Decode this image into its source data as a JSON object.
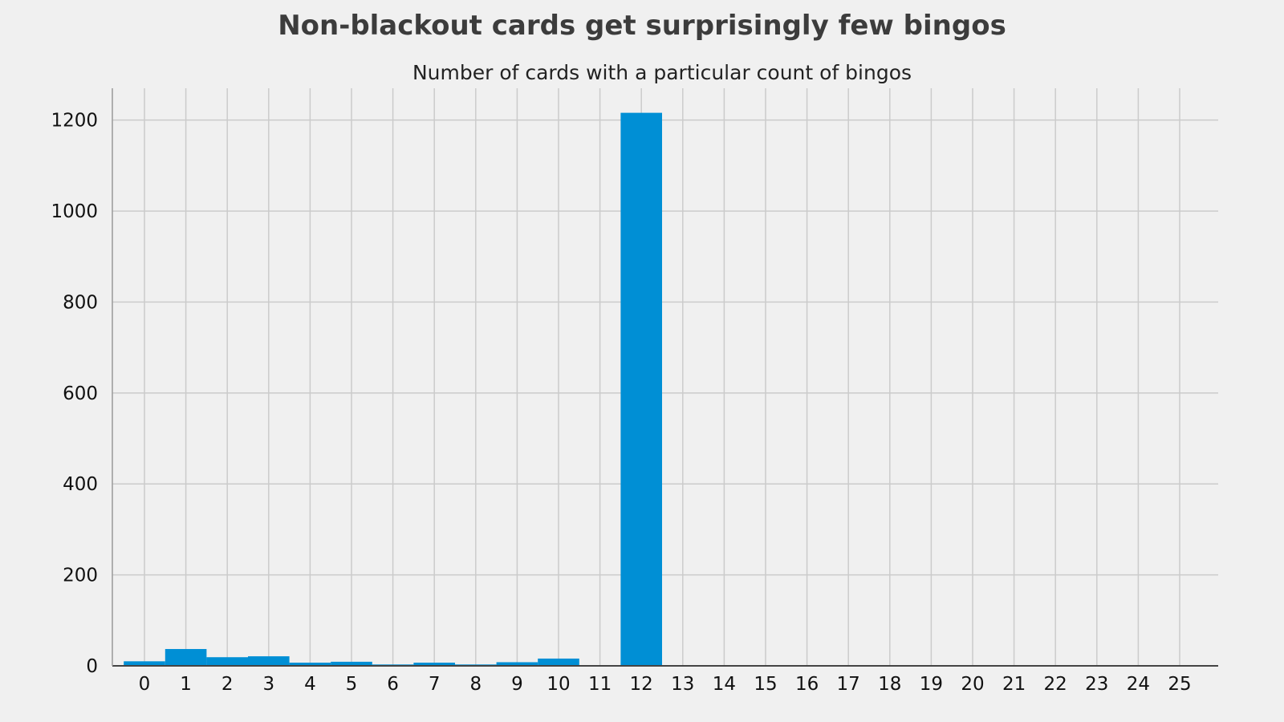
{
  "chart_data": {
    "type": "bar",
    "title": "Non-blackout cards get surprisingly few bingos",
    "subtitle": "Number of cards with a particular count of bingos",
    "xlabel": "",
    "ylabel": "",
    "categories": [
      "0",
      "1",
      "2",
      "3",
      "4",
      "5",
      "6",
      "7",
      "8",
      "9",
      "10",
      "11",
      "12",
      "13",
      "14",
      "15",
      "16",
      "17",
      "18",
      "19",
      "20",
      "21",
      "22",
      "23",
      "24",
      "25"
    ],
    "values": [
      10,
      37,
      19,
      21,
      7,
      9,
      3,
      7,
      3,
      8,
      16,
      0,
      1216,
      0,
      0,
      0,
      0,
      0,
      0,
      0,
      0,
      0,
      0,
      0,
      0,
      0
    ],
    "yticks": [
      0,
      200,
      400,
      600,
      800,
      1000,
      1200
    ],
    "ylim": [
      0,
      1270
    ],
    "grid": true,
    "bar_color": "#008fd5",
    "grid_color": "#cbcbcb",
    "background": "#f0f0f0"
  }
}
